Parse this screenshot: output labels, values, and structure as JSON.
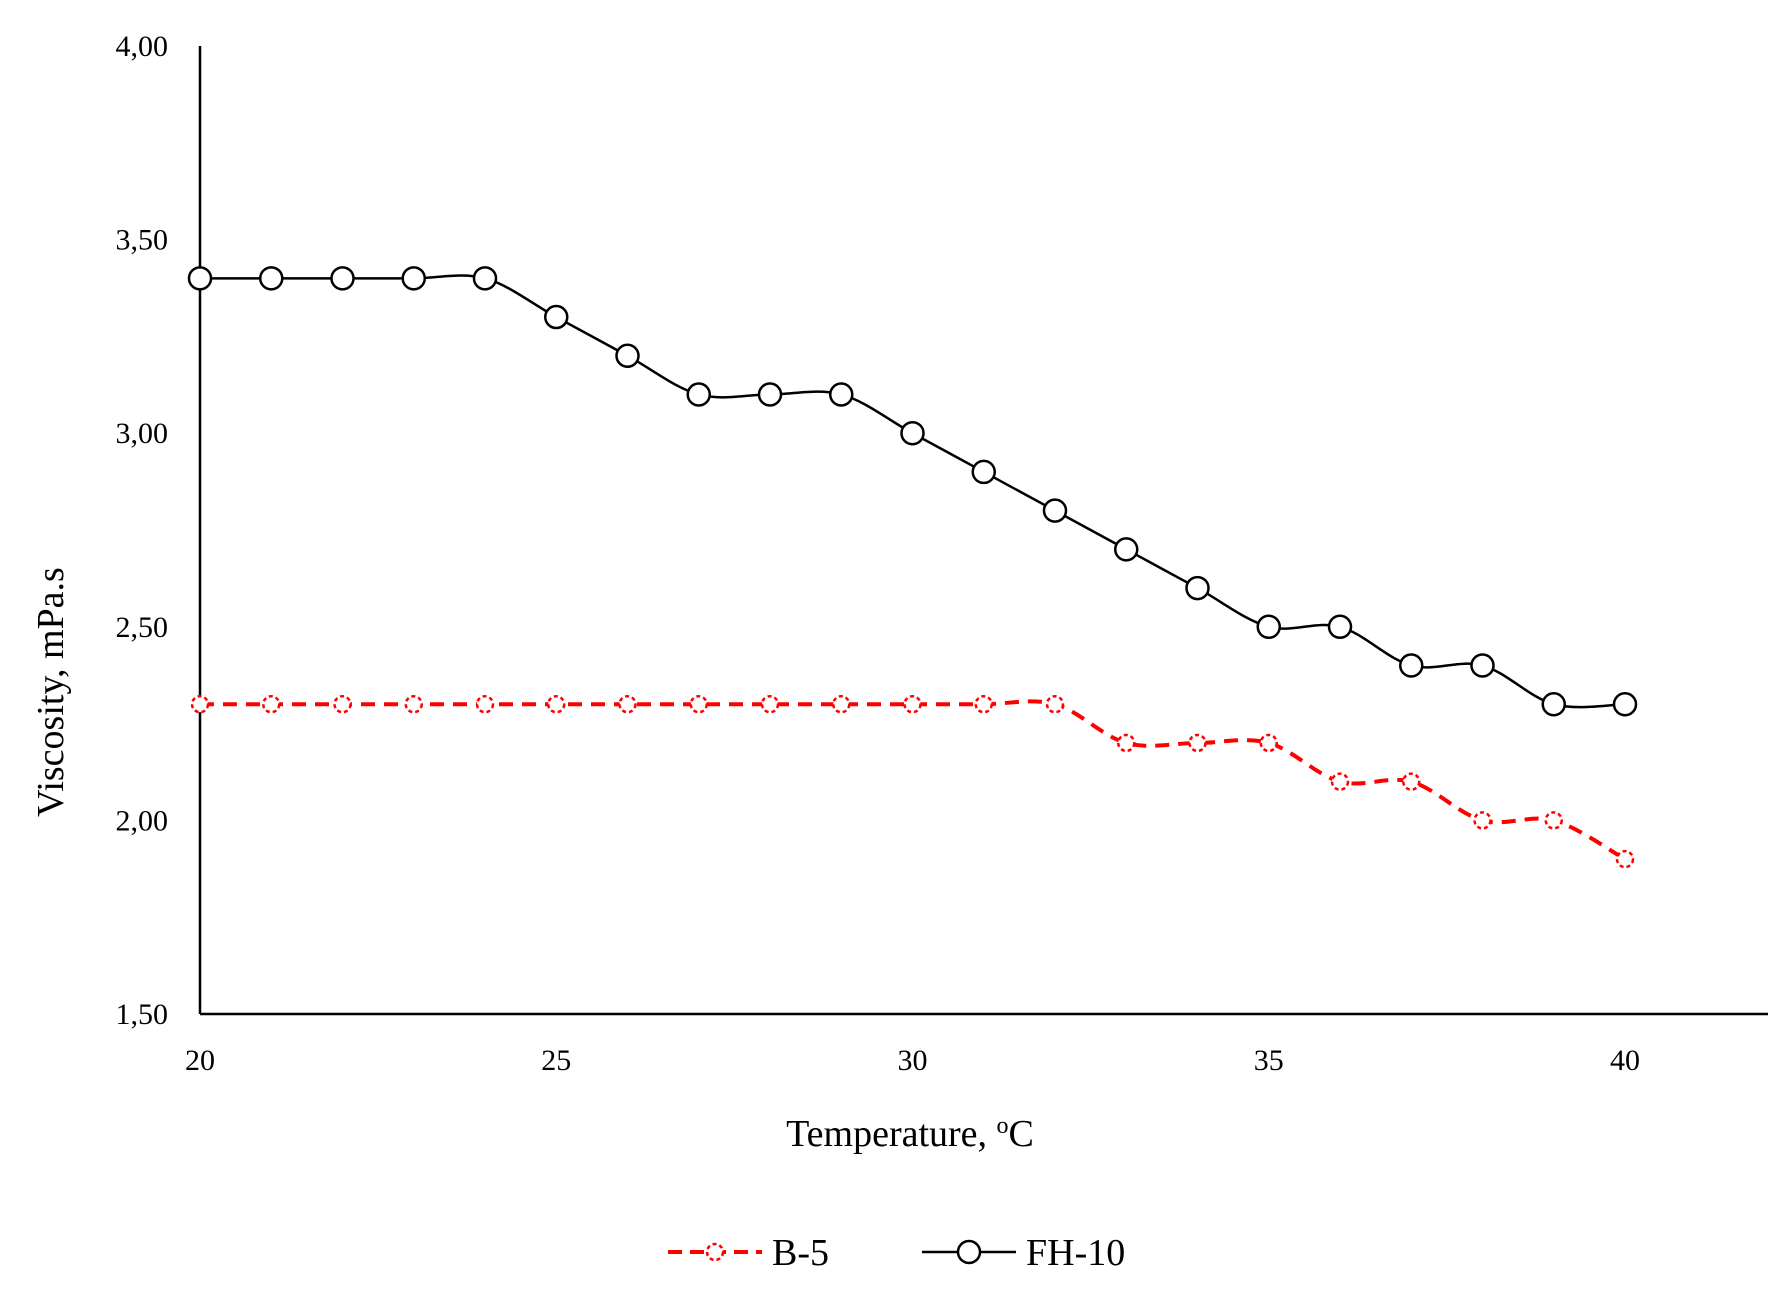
{
  "chart_data": {
    "type": "line",
    "title": "",
    "xlabel": "Temperature, ",
    "xlabel_sup": "o",
    "xlabel_suffix": "C",
    "ylabel": "Viscosity, mPa.s",
    "xlim": [
      20,
      42
    ],
    "ylim": [
      1.5,
      4.0
    ],
    "x_ticks": [
      20,
      25,
      30,
      35,
      40
    ],
    "x_tick_labels": [
      "20",
      "25",
      "30",
      "35",
      "40"
    ],
    "y_ticks": [
      1.5,
      2.0,
      2.5,
      3.0,
      3.5,
      4.0
    ],
    "y_tick_labels": [
      "1,50",
      "2,00",
      "2,50",
      "3,00",
      "3,50",
      "4,00"
    ],
    "grid": false,
    "legend_position": "bottom-center",
    "x": [
      20,
      21,
      22,
      23,
      24,
      25,
      26,
      27,
      28,
      29,
      30,
      31,
      32,
      33,
      34,
      35,
      36,
      37,
      38,
      39,
      40
    ],
    "series": [
      {
        "name": "B-5",
        "color": "#ff0000",
        "line_style": "dashed",
        "marker": "circle-open",
        "values": [
          2.3,
          2.3,
          2.3,
          2.3,
          2.3,
          2.3,
          2.3,
          2.3,
          2.3,
          2.3,
          2.3,
          2.3,
          2.3,
          2.2,
          2.2,
          2.2,
          2.1,
          2.1,
          2.0,
          2.0,
          1.9
        ]
      },
      {
        "name": "FH-10",
        "color": "#000000",
        "line_style": "solid",
        "marker": "circle-open",
        "values": [
          3.4,
          3.4,
          3.4,
          3.4,
          3.4,
          3.3,
          3.2,
          3.1,
          3.1,
          3.1,
          3.0,
          2.9,
          2.8,
          2.7,
          2.6,
          2.5,
          2.5,
          2.4,
          2.4,
          2.3,
          2.3
        ]
      }
    ]
  }
}
